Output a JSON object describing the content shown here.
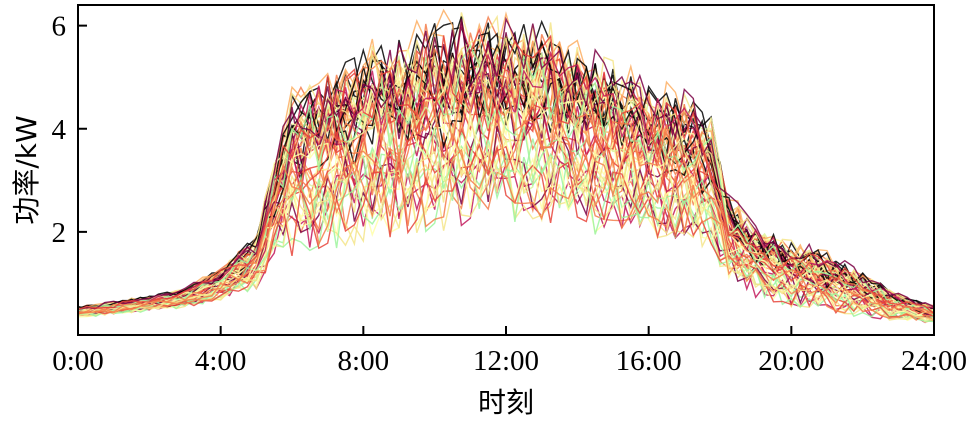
{
  "chart_data": {
    "type": "line",
    "title": "",
    "xlabel": "时刻",
    "ylabel": "功率/kW",
    "x_ticks": [
      "0:00",
      "4:00",
      "8:00",
      "12:00",
      "16:00",
      "20:00",
      "24:00"
    ],
    "y_ticks": [
      "2",
      "4",
      "6"
    ],
    "xlim": [
      0,
      24
    ],
    "ylim": [
      0,
      6.4
    ],
    "grid": false,
    "legend": "none",
    "series_count": 60,
    "time_step_hours": 0.25,
    "colormap": [
      "#000000",
      "#7a0044",
      "#c2185b",
      "#e8443a",
      "#f57d4a",
      "#fdae61",
      "#f4e58a",
      "#ffffa8",
      "#d9f59a",
      "#9ef59e"
    ],
    "envelope": {
      "x": [
        0,
        1,
        2,
        3,
        4,
        5,
        5.5,
        6,
        7,
        8,
        9,
        10,
        11,
        12,
        13,
        14,
        15,
        16,
        17,
        17.75,
        18.25,
        19,
        20,
        21,
        22,
        23,
        24
      ],
      "lower": [
        0.35,
        0.4,
        0.48,
        0.55,
        0.7,
        0.95,
        1.6,
        1.7,
        1.8,
        2.0,
        2.1,
        2.2,
        2.3,
        2.4,
        2.3,
        2.2,
        2.1,
        2.0,
        1.9,
        1.7,
        1.1,
        0.8,
        0.6,
        0.5,
        0.4,
        0.3,
        0.25
      ],
      "upper": [
        0.55,
        0.65,
        0.75,
        0.9,
        1.3,
        1.9,
        3.4,
        4.6,
        5.2,
        5.5,
        5.8,
        6.0,
        6.2,
        6.0,
        6.1,
        5.6,
        5.2,
        4.9,
        4.6,
        4.3,
        2.7,
        2.1,
        1.8,
        1.6,
        1.2,
        0.8,
        0.55
      ]
    }
  }
}
